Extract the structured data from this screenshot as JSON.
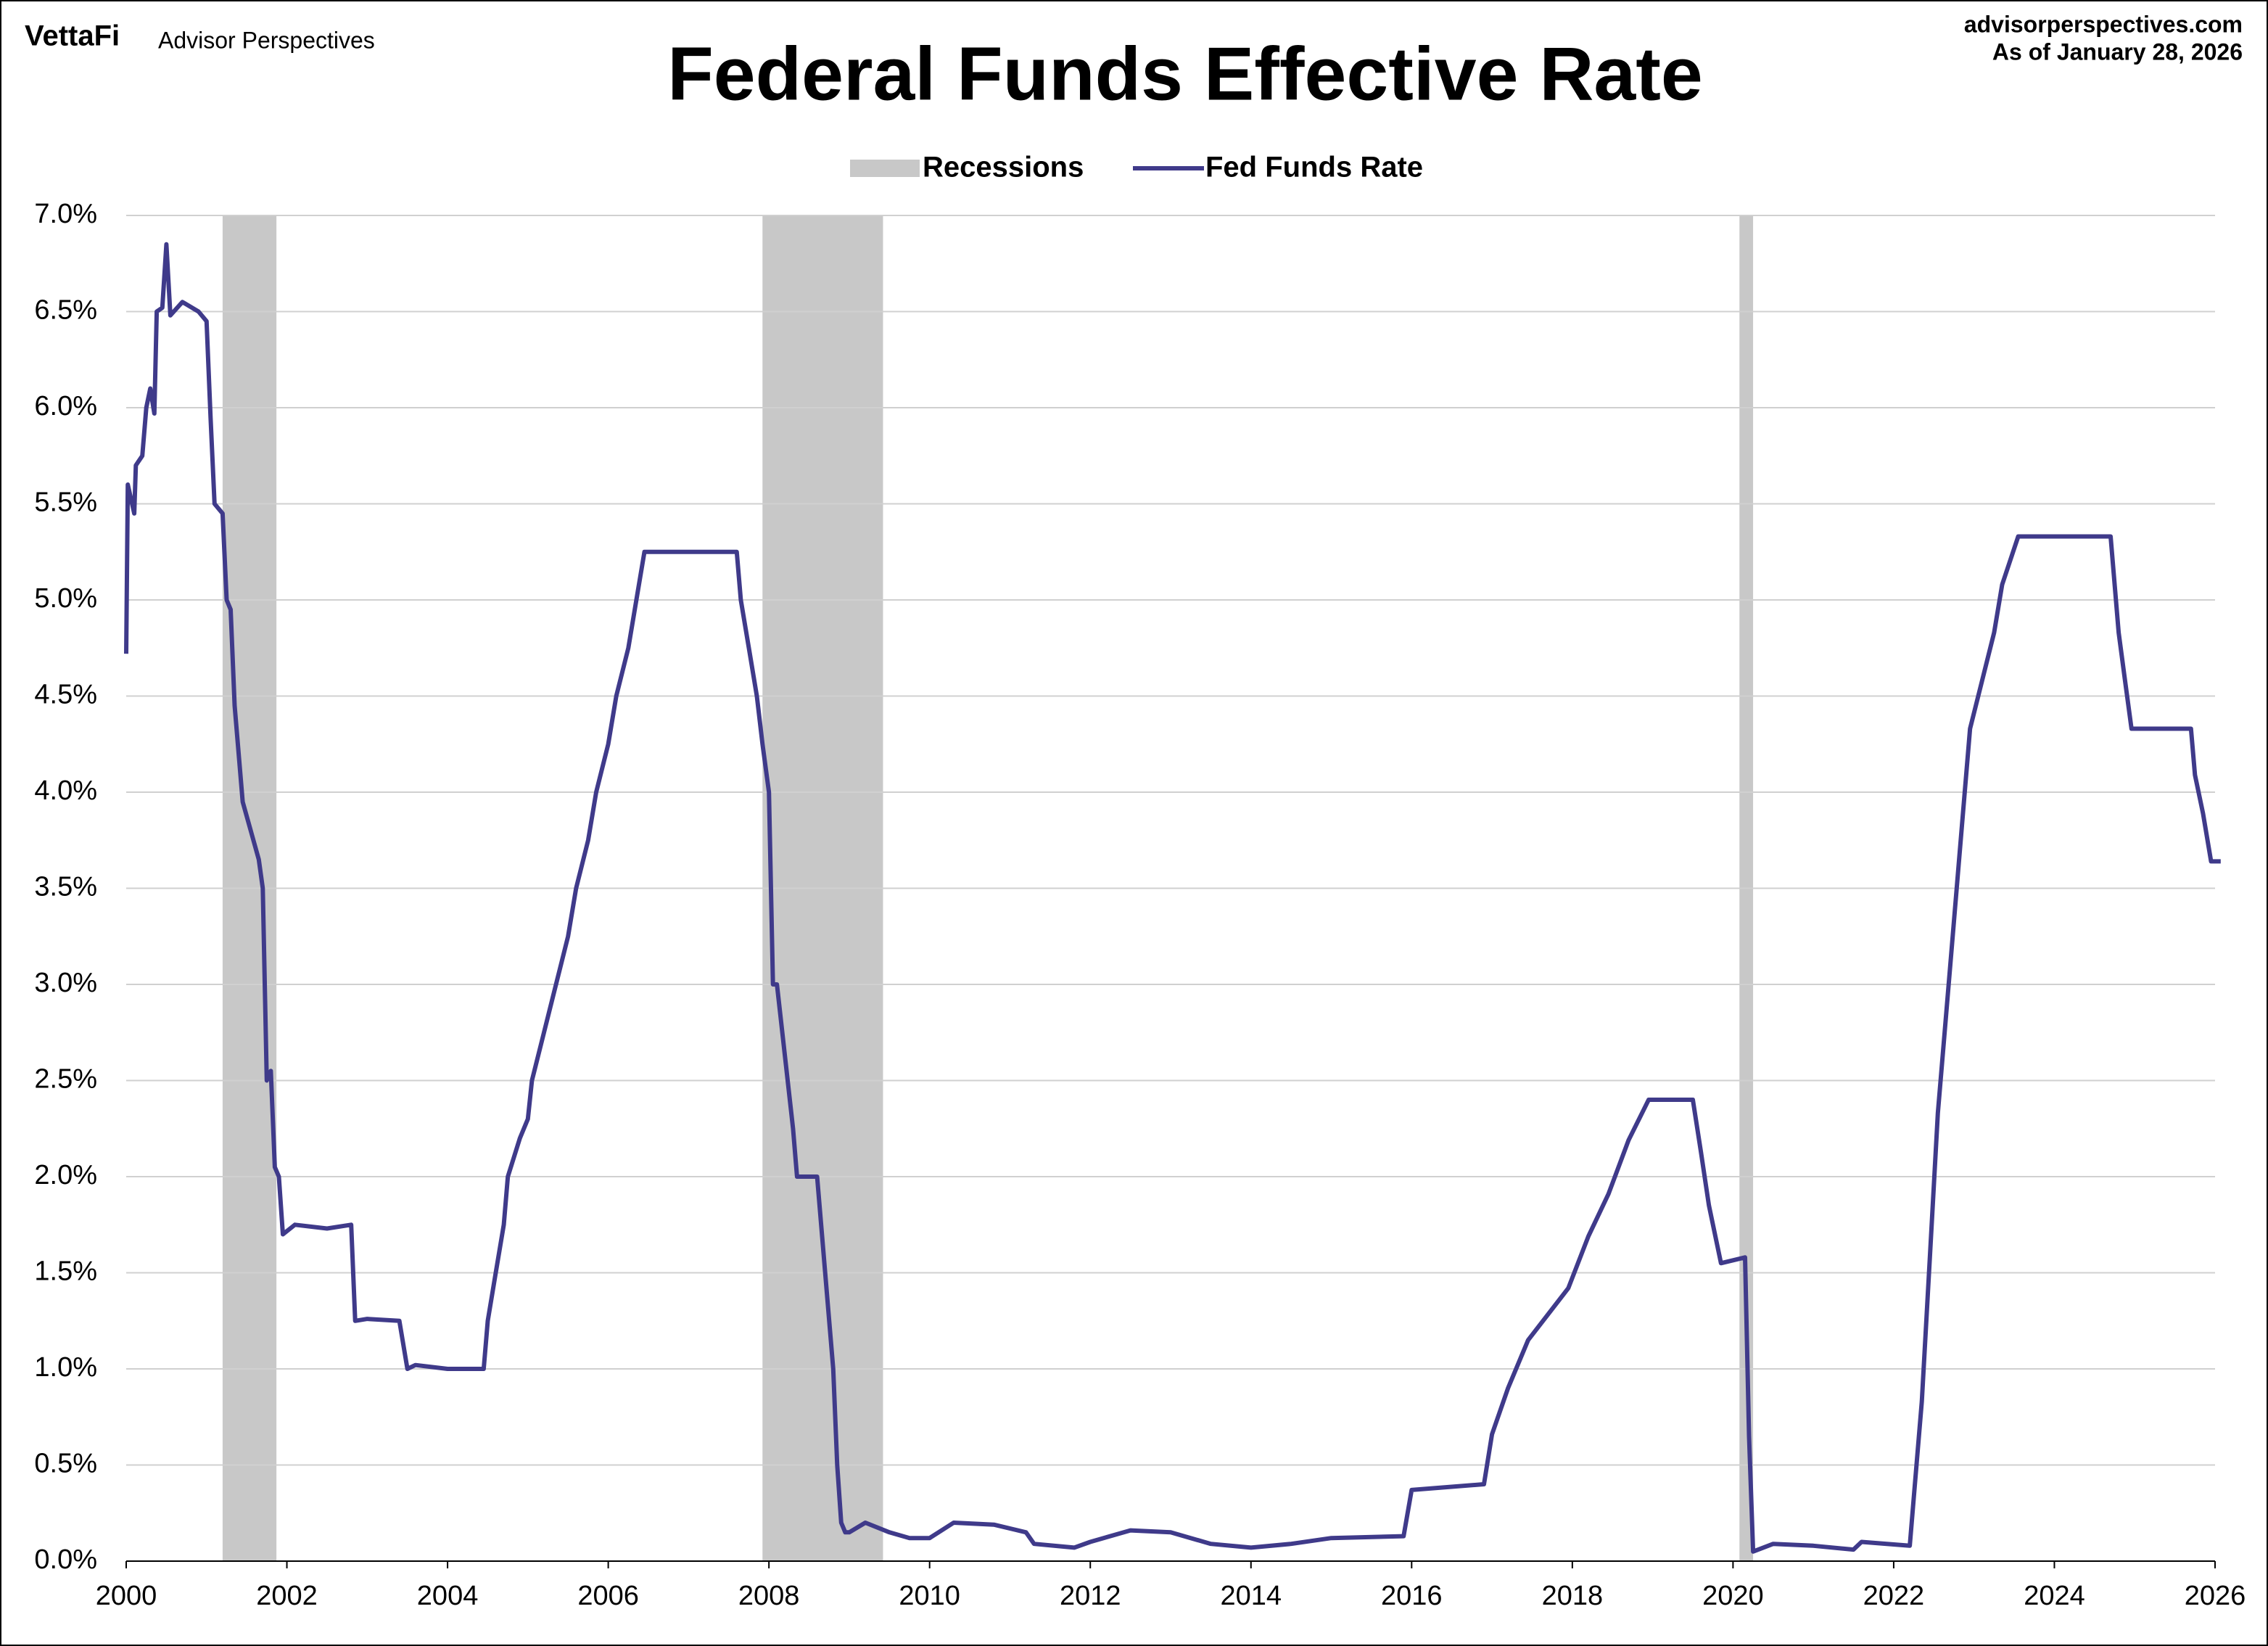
{
  "chart_data": {
    "type": "line",
    "brand": "VettaFi",
    "brand_sub": "Advisor Perspectives",
    "source": "advisorperspectives.com",
    "date": "As of January 28, 2026",
    "title": "Federal Funds Effective Rate",
    "xlim": [
      2000,
      2026
    ],
    "xticks": [
      2000,
      2002,
      2004,
      2006,
      2008,
      2010,
      2012,
      2014,
      2016,
      2018,
      2020,
      2022,
      2024,
      2026
    ],
    "ylim": [
      0,
      7
    ],
    "yticks": [
      {
        "value": 0,
        "label": "0.0%"
      },
      {
        "value": 0.5,
        "label": "0.5%"
      },
      {
        "value": 1,
        "label": "1.0%"
      },
      {
        "value": 1.5,
        "label": "1.5%"
      },
      {
        "value": 2,
        "label": "2.0%"
      },
      {
        "value": 2.5,
        "label": "2.5%"
      },
      {
        "value": 3,
        "label": "3.0%"
      },
      {
        "value": 3.5,
        "label": "3.5%"
      },
      {
        "value": 4,
        "label": "4.0%"
      },
      {
        "value": 4.5,
        "label": "4.5%"
      },
      {
        "value": 5,
        "label": "5.0%"
      },
      {
        "value": 5.5,
        "label": "5.5%"
      },
      {
        "value": 6,
        "label": "6.0%"
      },
      {
        "value": 6.5,
        "label": "6.5%"
      },
      {
        "value": 7,
        "label": "7.0%"
      }
    ],
    "grid": true,
    "recessions": {
      "name": "Recessions",
      "color": "#c8c8c8",
      "start": [
        2001.2,
        2007.92,
        2020.08
      ],
      "end": [
        2001.87,
        2009.42,
        2020.25
      ]
    },
    "x": [
      2000.0,
      2000.02,
      2000.1,
      2000.12,
      2000.2,
      2000.25,
      2000.3,
      2000.35,
      2000.38,
      2000.45,
      2000.5,
      2000.55,
      2000.7,
      2000.9,
      2001.0,
      2001.05,
      2001.1,
      2001.2,
      2001.25,
      2001.3,
      2001.35,
      2001.45,
      2001.55,
      2001.65,
      2001.7,
      2001.75,
      2001.8,
      2001.85,
      2001.9,
      2001.95,
      2002.1,
      2002.5,
      2002.8,
      2002.85,
      2003.0,
      2003.4,
      2003.5,
      2003.6,
      2004.0,
      2004.45,
      2004.5,
      2004.6,
      2004.7,
      2004.75,
      2004.9,
      2005.0,
      2005.05,
      2005.2,
      2005.35,
      2005.5,
      2005.6,
      2005.75,
      2005.85,
      2006.0,
      2006.1,
      2006.25,
      2006.35,
      2006.45,
      2006.6,
      2007.6,
      2007.65,
      2007.75,
      2007.85,
      2007.92,
      2008.0,
      2008.05,
      2008.1,
      2008.3,
      2008.35,
      2008.6,
      2008.7,
      2008.8,
      2008.85,
      2008.9,
      2008.95,
      2009.0,
      2009.2,
      2009.5,
      2009.75,
      2010.0,
      2010.3,
      2010.8,
      2011.2,
      2011.3,
      2011.8,
      2012.0,
      2012.5,
      2013.0,
      2013.5,
      2014.0,
      2014.5,
      2015.0,
      2015.9,
      2016.0,
      2016.9,
      2017.0,
      2017.2,
      2017.45,
      2017.95,
      2018.2,
      2018.45,
      2018.7,
      2018.95,
      2019.5,
      2019.6,
      2019.7,
      2019.85,
      2020.15,
      2020.2,
      2020.25,
      2020.5,
      2021.0,
      2021.5,
      2021.6,
      2022.2,
      2022.25,
      2022.35,
      2022.45,
      2022.55,
      2022.7,
      2022.85,
      2022.95,
      2023.1,
      2023.25,
      2023.35,
      2023.55,
      2024.7,
      2024.8,
      2024.88,
      2024.96,
      2025.7,
      2025.75,
      2025.85,
      2025.95,
      2026.07
    ],
    "series": [
      {
        "name": "Fed Funds Rate",
        "color": "#3f3a8a",
        "values": [
          4.72,
          5.6,
          5.45,
          5.7,
          5.75,
          6.0,
          6.1,
          5.97,
          6.5,
          6.52,
          6.85,
          6.48,
          6.55,
          6.5,
          6.45,
          5.95,
          5.5,
          5.45,
          5.0,
          4.95,
          4.45,
          3.95,
          3.8,
          3.65,
          3.5,
          2.5,
          2.55,
          2.05,
          2.0,
          1.7,
          1.75,
          1.73,
          1.75,
          1.25,
          1.26,
          1.25,
          1.0,
          1.02,
          1.0,
          1.0,
          1.25,
          1.5,
          1.75,
          2.0,
          2.2,
          2.3,
          2.5,
          2.75,
          3.0,
          3.25,
          3.5,
          3.75,
          4.0,
          4.25,
          4.5,
          4.75,
          5.0,
          5.25,
          5.25,
          5.25,
          5.0,
          4.75,
          4.5,
          4.25,
          4.0,
          3.0,
          3.0,
          2.25,
          2.0,
          2.0,
          1.5,
          1.0,
          0.5,
          0.2,
          0.15,
          0.15,
          0.2,
          0.15,
          0.12,
          0.12,
          0.2,
          0.19,
          0.15,
          0.09,
          0.07,
          0.1,
          0.16,
          0.15,
          0.09,
          0.07,
          0.09,
          0.12,
          0.13,
          0.37,
          0.4,
          0.66,
          0.9,
          1.15,
          1.42,
          1.69,
          1.91,
          2.19,
          2.4,
          2.4,
          2.13,
          1.85,
          1.55,
          1.58,
          0.65,
          0.05,
          0.09,
          0.08,
          0.06,
          0.1,
          0.08,
          0.33,
          0.83,
          1.58,
          2.33,
          3.08,
          3.83,
          4.33,
          4.58,
          4.83,
          5.08,
          5.33,
          5.33,
          4.83,
          4.58,
          4.33,
          4.33,
          4.09,
          3.89,
          3.64,
          3.64
        ]
      }
    ]
  }
}
